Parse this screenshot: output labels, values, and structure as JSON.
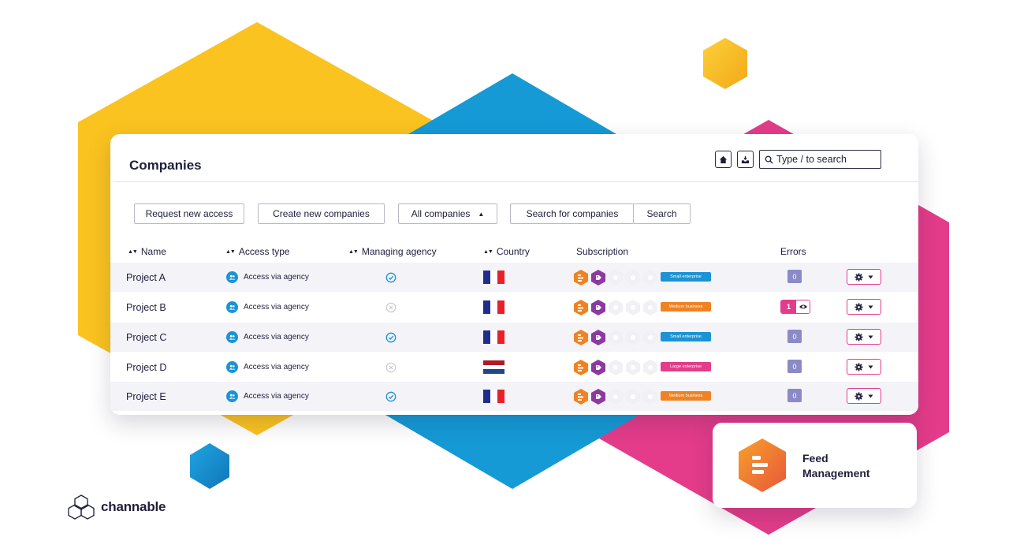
{
  "header": {
    "title": "Companies",
    "search_placeholder": "Type / to search"
  },
  "toolbar": {
    "request_access_label": "Request new access",
    "create_companies_label": "Create new companies",
    "filter_selected": "All companies",
    "search_companies_placeholder": "Search for companies",
    "search_button_label": "Search"
  },
  "table": {
    "columns": {
      "name": "Name",
      "access_type": "Access type",
      "managing_agency": "Managing agency",
      "country": "Country",
      "subscription": "Subscription",
      "errors": "Errors"
    },
    "rows": [
      {
        "name": "Project A",
        "access": "Access via agency",
        "managing_agency": true,
        "country": "France",
        "subscription": "Small enterprise",
        "subscription_color": "#1b93d4",
        "errors": "0"
      },
      {
        "name": "Project B",
        "access": "Access via agency",
        "managing_agency": false,
        "country": "France",
        "subscription": "Medium business",
        "subscription_color": "#f08222",
        "errors": "1"
      },
      {
        "name": "Project C",
        "access": "Access via agency",
        "managing_agency": true,
        "country": "France",
        "subscription": "Small enterprise",
        "subscription_color": "#1b93d4",
        "errors": "0"
      },
      {
        "name": "Project D",
        "access": "Access via agency",
        "managing_agency": false,
        "country": "Netherlands",
        "subscription": "Large enterprise",
        "subscription_color": "#e43c8a",
        "errors": "0"
      },
      {
        "name": "Project E",
        "access": "Access via agency",
        "managing_agency": true,
        "country": "France",
        "subscription": "Medium business",
        "subscription_color": "#f08222",
        "errors": "0"
      }
    ]
  },
  "feature_card": {
    "line1": "Feed",
    "line2": "Management"
  },
  "brand": {
    "name": "channable"
  },
  "colors": {
    "yellow": "#fbc320",
    "blue": "#159ad6",
    "pink": "#e43c8a",
    "orange": "#f08222",
    "purple": "#8b3aa0",
    "dark": "#1f1f3d",
    "error_badge": "#8b8ac7"
  }
}
